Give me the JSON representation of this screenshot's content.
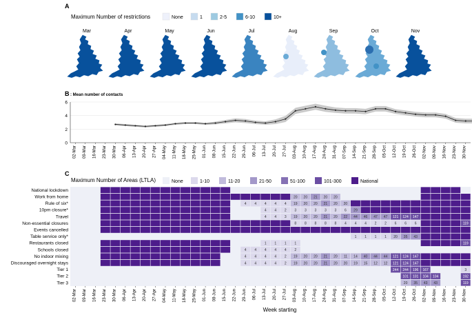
{
  "panel_a": {
    "label": "A",
    "legend_title": "Maximum Number of restrictions",
    "legend": [
      {
        "label": "None",
        "color": "#eef1fb"
      },
      {
        "label": "1",
        "color": "#c6dbef"
      },
      {
        "label": "2-5",
        "color": "#9ecae1"
      },
      {
        "label": "6-10",
        "color": "#4292c6"
      },
      {
        "label": "10+",
        "color": "#08519c"
      }
    ],
    "maps": [
      {
        "month": "Mar",
        "color": "#08519c"
      },
      {
        "month": "Apr",
        "color": "#08519c"
      },
      {
        "month": "May",
        "color": "#08519c"
      },
      {
        "month": "Jun",
        "color": "#08519c"
      },
      {
        "month": "Jul",
        "color": "#3a84c0"
      },
      {
        "month": "Aug",
        "color": "#e8eefa"
      },
      {
        "month": "Sep",
        "color": "#8ebddf"
      },
      {
        "month": "Oct",
        "color": "#6aaad6"
      },
      {
        "month": "Nov",
        "color": "#08519c"
      }
    ]
  },
  "panel_b": {
    "label": "B",
    "title": ": Mean number of contacts"
  },
  "weeks": [
    "02-Mar",
    "09-Mar",
    "16-Mar",
    "23-Mar",
    "30-Mar",
    "06-Apr",
    "13-Apr",
    "20-Apr",
    "27-Apr",
    "04-May",
    "11-May",
    "18-May",
    "25-May",
    "01-Jun",
    "08-Jun",
    "15-Jun",
    "22-Jun",
    "29-Jun",
    "06-Jul",
    "13-Jul",
    "20-Jul",
    "27-Jul",
    "03-Aug",
    "10-Aug",
    "17-Aug",
    "24-Aug",
    "31-Aug",
    "07-Sep",
    "14-Sep",
    "21-Sep",
    "28-Sep",
    "05-Oct",
    "12-Oct",
    "19-Oct",
    "26-Oct",
    "02-Nov",
    "09-Nov",
    "16-Nov",
    "23-Nov",
    "30-Nov"
  ],
  "chart_data": [
    {
      "type": "line",
      "ylim": [
        0,
        6
      ],
      "yticks": [
        0,
        2,
        4,
        6
      ],
      "series": [
        {
          "x_start_index": 4,
          "values": [
            2.7,
            2.6,
            2.5,
            2.4,
            2.5,
            2.6,
            2.8,
            2.9,
            2.9,
            2.8,
            2.9,
            3.1,
            3.3,
            3.2,
            3.0,
            2.9,
            3.1,
            3.5,
            4.7,
            5.0,
            5.3,
            5.0,
            4.8,
            4.7,
            4.7,
            4.6,
            5.0,
            5.0,
            4.6,
            4.4,
            4.2,
            4.1,
            4.1,
            3.9,
            3.3,
            3.2,
            3.2,
            3.5,
            4.0
          ],
          "ci_width": [
            0.15,
            0.15,
            0.15,
            0.15,
            0.15,
            0.15,
            0.15,
            0.15,
            0.15,
            0.15,
            0.2,
            0.25,
            0.3,
            0.3,
            0.25,
            0.25,
            0.35,
            0.45,
            0.45,
            0.45,
            0.45,
            0.45,
            0.4,
            0.4,
            0.4,
            0.4,
            0.4,
            0.4,
            0.35,
            0.35,
            0.35,
            0.35,
            0.35,
            0.35,
            0.35,
            0.35,
            0.35,
            0.4,
            0.5
          ]
        }
      ]
    },
    {
      "type": "heatmap",
      "label": "C",
      "legend_title": "Maximum Number of Areas (LTLA)",
      "legend": [
        {
          "label": "None",
          "color": "#eef0f7"
        },
        {
          "label": "1-10",
          "color": "#dcd9ec"
        },
        {
          "label": "11-20",
          "color": "#c1bbdc"
        },
        {
          "label": "21-50",
          "color": "#a398c9"
        },
        {
          "label": "51-100",
          "color": "#8571b4"
        },
        {
          "label": "101-300",
          "color": "#6b4ea3"
        },
        {
          "label": "National",
          "color": "#4d1c8b"
        }
      ],
      "xlabel": "Week starting",
      "rows": [
        {
          "name": "National lockdown",
          "cells": [
            "",
            "",
            "",
            "N",
            "N",
            "N",
            "N",
            "N",
            "N",
            "N",
            "N",
            "N",
            "N",
            "N",
            "N",
            "N",
            "",
            "",
            "",
            "",
            "",
            "",
            "",
            "",
            "",
            "",
            "",
            "",
            "",
            "",
            "",
            "",
            "",
            "",
            "",
            "N",
            "N",
            "N",
            "N",
            ""
          ]
        },
        {
          "name": "Work from home",
          "cells": [
            "",
            "",
            "",
            "N",
            "N",
            "N",
            "N",
            "N",
            "N",
            "N",
            "N",
            "N",
            "N",
            "N",
            "N",
            "N",
            "N",
            "N",
            "N",
            "N",
            "N",
            "N",
            "20",
            "20",
            "21",
            "20",
            "20",
            "",
            "",
            "",
            "",
            "",
            "",
            "",
            "",
            "N",
            "N",
            "N",
            "N",
            "N"
          ]
        },
        {
          "name": "Rule of six*",
          "cells": [
            "",
            "",
            "",
            "N",
            "N",
            "N",
            "N",
            "N",
            "N",
            "N",
            "N",
            "N",
            "N",
            "N",
            "N",
            "N",
            "",
            "4",
            "4",
            "4",
            "4",
            "4",
            "19",
            "20",
            "20",
            "21",
            "20",
            "20",
            "N",
            "N",
            "N",
            "N",
            "N",
            "N",
            "N",
            "N",
            "N",
            "N",
            "N",
            "N"
          ]
        },
        {
          "name": "10pm closure*",
          "cells": [
            "",
            "",
            "",
            "N",
            "N",
            "N",
            "N",
            "N",
            "N",
            "N",
            "N",
            "N",
            "N",
            "N",
            "N",
            "N",
            "",
            "",
            "",
            "4",
            "4",
            "2",
            "3",
            "3",
            "3",
            "3",
            "3",
            "6",
            "29",
            "N",
            "N",
            "N",
            "N",
            "N",
            "N",
            "N",
            "N",
            "N",
            "N",
            "N"
          ]
        },
        {
          "name": "Travel",
          "cells": [
            "",
            "",
            "",
            "N",
            "N",
            "N",
            "N",
            "N",
            "N",
            "N",
            "N",
            "N",
            "N",
            "N",
            "N",
            "N",
            "",
            "",
            "",
            "4",
            "4",
            "3",
            "19",
            "20",
            "20",
            "21",
            "20",
            "22",
            "44",
            "46",
            "47",
            "47",
            "121",
            "124",
            "147",
            "N",
            "N",
            "N",
            "N",
            "N"
          ]
        },
        {
          "name": "Non-essential closures",
          "cells": [
            "",
            "",
            "",
            "N",
            "N",
            "N",
            "N",
            "N",
            "N",
            "N",
            "N",
            "N",
            "N",
            "N",
            "N",
            "N",
            "N",
            "N",
            "N",
            "N",
            "N",
            "N",
            "8",
            "8",
            "8",
            "8",
            "8",
            "4",
            "4",
            "4",
            "2",
            "2",
            "6",
            "6",
            "6",
            "N",
            "N",
            "N",
            "N",
            "119"
          ]
        },
        {
          "name": "Events cancelled",
          "cells": [
            "",
            "",
            "",
            "N",
            "N",
            "N",
            "N",
            "N",
            "N",
            "N",
            "N",
            "N",
            "N",
            "N",
            "N",
            "N",
            "N",
            "N",
            "N",
            "N",
            "N",
            "N",
            "N",
            "N",
            "N",
            "N",
            "N",
            "N",
            "N",
            "N",
            "N",
            "N",
            "N",
            "N",
            "N",
            "N",
            "N",
            "N",
            "N",
            "N"
          ]
        },
        {
          "name": "Table service only*",
          "cells": [
            "",
            "",
            "",
            "",
            "",
            "",
            "",
            "",
            "",
            "",
            "",
            "",
            "",
            "",
            "",
            "",
            "",
            "",
            "",
            "",
            "",
            "",
            "",
            "",
            "",
            "",
            "",
            "",
            "1",
            "1",
            "1",
            "1",
            "20",
            "35",
            "43",
            "N",
            "N",
            "N",
            "N",
            "N"
          ]
        },
        {
          "name": "Restaurants closed",
          "cells": [
            "",
            "",
            "",
            "N",
            "N",
            "N",
            "N",
            "N",
            "N",
            "N",
            "N",
            "N",
            "N",
            "N",
            "N",
            "N",
            "",
            "",
            "",
            "1",
            "1",
            "1",
            "1",
            "",
            "",
            "",
            "",
            "",
            "",
            "",
            "",
            "",
            "",
            "",
            "",
            "N",
            "N",
            "N",
            "N",
            "119"
          ]
        },
        {
          "name": "Schools closed",
          "cells": [
            "",
            "",
            "",
            "N",
            "N",
            "N",
            "N",
            "N",
            "N",
            "N",
            "N",
            "N",
            "N",
            "N",
            "N",
            "N",
            "",
            "4",
            "4",
            "4",
            "4",
            "4",
            "2",
            "",
            "",
            "",
            "",
            "",
            "",
            "",
            "",
            "",
            "",
            "",
            "",
            "",
            "",
            "",
            "",
            ""
          ]
        },
        {
          "name": "No indoor mixing",
          "cells": [
            "",
            "",
            "",
            "N",
            "N",
            "N",
            "N",
            "N",
            "N",
            "N",
            "N",
            "N",
            "N",
            "N",
            "N",
            "",
            "",
            "4",
            "4",
            "4",
            "4",
            "2",
            "19",
            "20",
            "20",
            "21",
            "20",
            "11",
            "14",
            "40",
            "44",
            "44",
            "121",
            "124",
            "147",
            "N",
            "N",
            "N",
            "N",
            "N"
          ]
        },
        {
          "name": "Discouraged overnight stays",
          "cells": [
            "",
            "",
            "",
            "N",
            "N",
            "N",
            "N",
            "N",
            "N",
            "N",
            "N",
            "N",
            "N",
            "N",
            "N",
            "",
            "",
            "4",
            "4",
            "4",
            "4",
            "2",
            "19",
            "20",
            "20",
            "21",
            "20",
            "20",
            "19",
            "15",
            "12",
            "12",
            "121",
            "124",
            "147",
            "N",
            "N",
            "N",
            "N",
            "N"
          ]
        },
        {
          "name": "Tier 1",
          "cells": [
            "",
            "",
            "",
            "",
            "",
            "",
            "",
            "",
            "",
            "",
            "",
            "",
            "",
            "",
            "",
            "",
            "",
            "",
            "",
            "",
            "",
            "",
            "",
            "",
            "",
            "",
            "",
            "",
            "",
            "",
            "",
            "",
            "244",
            "244",
            "196",
            "167",
            "",
            "",
            "",
            "3"
          ]
        },
        {
          "name": "Tier 2",
          "cells": [
            "",
            "",
            "",
            "",
            "",
            "",
            "",
            "",
            "",
            "",
            "",
            "",
            "",
            "",
            "",
            "",
            "",
            "",
            "",
            "",
            "",
            "",
            "",
            "",
            "",
            "",
            "",
            "",
            "",
            "",
            "",
            "",
            "",
            "101",
            "101",
            "104",
            "104",
            "",
            "",
            "192"
          ]
        },
        {
          "name": "Tier 3",
          "cells": [
            "",
            "",
            "",
            "",
            "",
            "",
            "",
            "",
            "",
            "",
            "",
            "",
            "",
            "",
            "",
            "",
            "",
            "",
            "",
            "",
            "",
            "",
            "",
            "",
            "",
            "",
            "",
            "",
            "",
            "",
            "",
            "",
            "",
            "20",
            "35",
            "43",
            "43",
            "",
            "",
            "119"
          ]
        }
      ]
    }
  ],
  "colors": {
    "national": "#4d1c8b",
    "none": "#eef0f7",
    "line": "#222222",
    "ribbon": "#bdbdbd"
  }
}
